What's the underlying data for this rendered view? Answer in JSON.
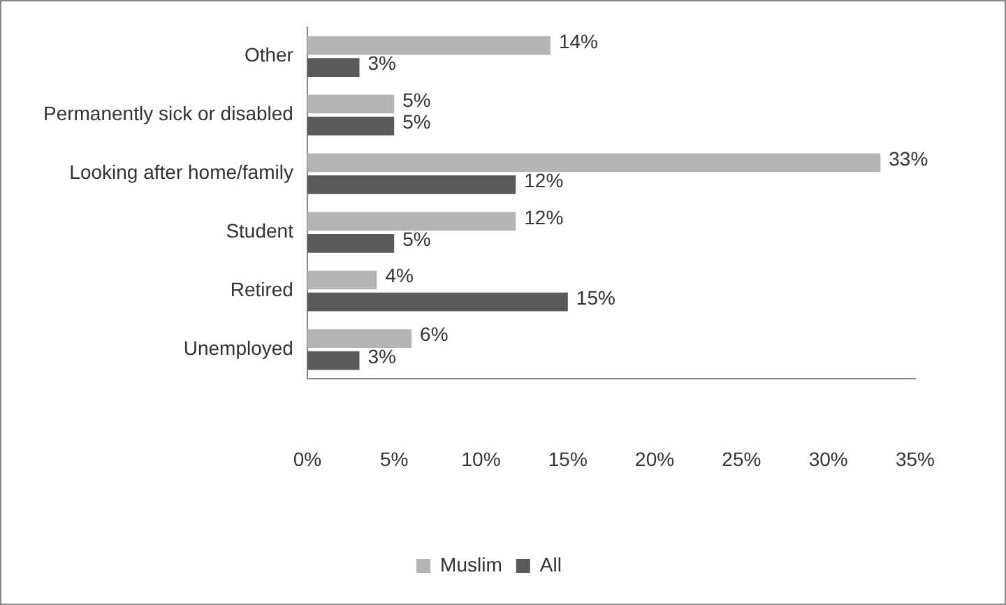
{
  "chart_data": {
    "type": "bar",
    "orientation": "horizontal",
    "categories": [
      "Other",
      "Permanently sick or disabled",
      "Looking after home/family",
      "Student",
      "Retired",
      "Unemployed"
    ],
    "series": [
      {
        "name": "Muslim",
        "color": "#b3b3b3",
        "values": [
          14,
          5,
          33,
          12,
          4,
          6
        ],
        "value_labels": [
          "14%",
          "5%",
          "33%",
          "12%",
          "4%",
          "6%"
        ]
      },
      {
        "name": "All",
        "color": "#595959",
        "values": [
          3,
          5,
          12,
          5,
          15,
          3
        ],
        "value_labels": [
          "3%",
          "5%",
          "12%",
          "5%",
          "15%",
          "3%"
        ]
      }
    ],
    "xlim": [
      0,
      35
    ],
    "xticks": [
      {
        "value": 0,
        "label": "0%"
      },
      {
        "value": 5,
        "label": "5%"
      },
      {
        "value": 10,
        "label": "10%"
      },
      {
        "value": 15,
        "label": "15%"
      },
      {
        "value": 20,
        "label": "20%"
      },
      {
        "value": 25,
        "label": "25%"
      },
      {
        "value": 30,
        "label": "30%"
      },
      {
        "value": 35,
        "label": "35%"
      }
    ],
    "grid": false,
    "legend": "bottom"
  }
}
